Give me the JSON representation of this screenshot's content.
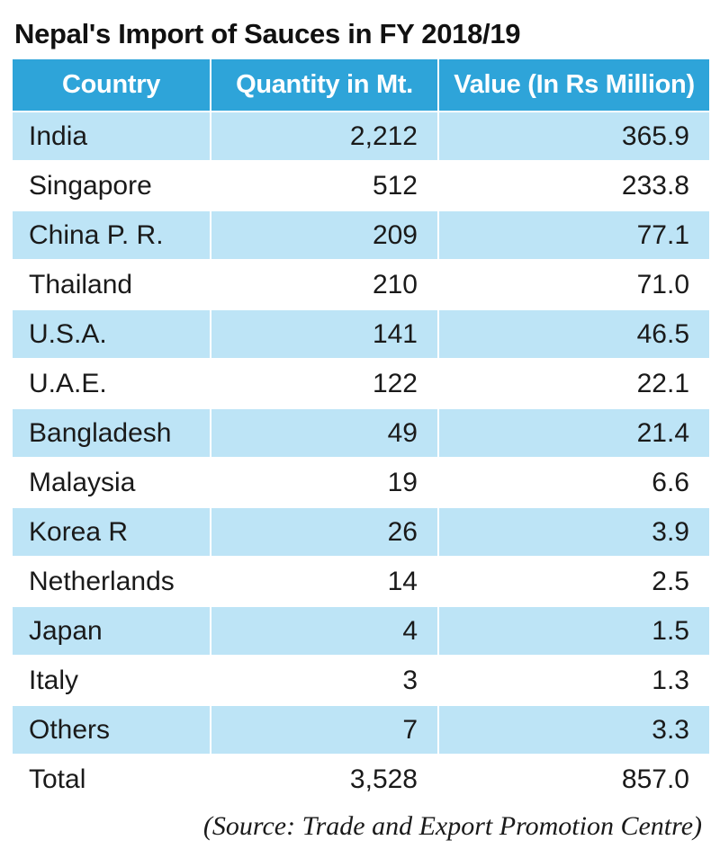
{
  "chart_data": {
    "type": "table",
    "title": "Nepal's Import of Sauces in FY 2018/19",
    "columns": [
      "Country",
      "Quantity in Mt.",
      "Value (In Rs Million)"
    ],
    "rows": [
      {
        "country": "India",
        "quantity": "2,212",
        "value": "365.9"
      },
      {
        "country": "Singapore",
        "quantity": "512",
        "value": "233.8"
      },
      {
        "country": "China P. R.",
        "quantity": "209",
        "value": "77.1"
      },
      {
        "country": "Thailand",
        "quantity": "210",
        "value": "71.0"
      },
      {
        "country": "U.S.A.",
        "quantity": "141",
        "value": "46.5"
      },
      {
        "country": "U.A.E.",
        "quantity": "122",
        "value": "22.1"
      },
      {
        "country": "Bangladesh",
        "quantity": "49",
        "value": "21.4"
      },
      {
        "country": "Malaysia",
        "quantity": "19",
        "value": "6.6"
      },
      {
        "country": "Korea R",
        "quantity": "26",
        "value": "3.9"
      },
      {
        "country": "Netherlands",
        "quantity": "14",
        "value": "2.5"
      },
      {
        "country": "Japan",
        "quantity": "4",
        "value": "1.5"
      },
      {
        "country": "Italy",
        "quantity": "3",
        "value": "1.3"
      },
      {
        "country": "Others",
        "quantity": "7",
        "value": "3.3"
      }
    ],
    "total": {
      "country": "Total",
      "quantity": "3,528",
      "value": "857.0"
    },
    "source": "(Source: Trade and Export Promotion Centre)"
  },
  "colors": {
    "header_bg": "#2ea4d9",
    "header_text": "#ffffff",
    "stripe": "#bde4f6",
    "background": "#ffffff"
  }
}
